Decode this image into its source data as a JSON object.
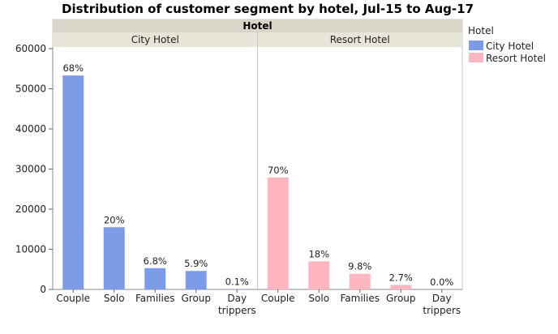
{
  "chart_data": {
    "type": "bar",
    "title": "Distribution of customer segment by hotel, Jul-15 to Aug-17",
    "group_header": "Hotel",
    "legend": {
      "title": "Hotel",
      "position": "top-right",
      "entries": [
        {
          "name": "City Hotel",
          "color": "#7b9be6"
        },
        {
          "name": "Resort Hotel",
          "color": "#ffb6c1"
        }
      ]
    },
    "ylim": [
      0,
      60000
    ],
    "yticks": [
      "0",
      "10000",
      "20000",
      "30000",
      "40000",
      "50000",
      "60000"
    ],
    "grid": false,
    "panels": [
      {
        "name": "City Hotel",
        "color": "#7b9be6",
        "categories": [
          "Couple",
          "Solo",
          "Families",
          "Group",
          "Day\ntrippers"
        ],
        "values": [
          53300,
          15500,
          5300,
          4600,
          80
        ],
        "labels": [
          "68%",
          "20%",
          "6.8%",
          "5.9%",
          "0.1%"
        ]
      },
      {
        "name": "Resort Hotel",
        "color": "#ffb6c1",
        "categories": [
          "Couple",
          "Solo",
          "Families",
          "Group",
          "Day\ntrippers"
        ],
        "values": [
          27900,
          7000,
          3900,
          1100,
          0
        ],
        "labels": [
          "70%",
          "18%",
          "9.8%",
          "2.7%",
          "0.0%"
        ]
      }
    ]
  }
}
